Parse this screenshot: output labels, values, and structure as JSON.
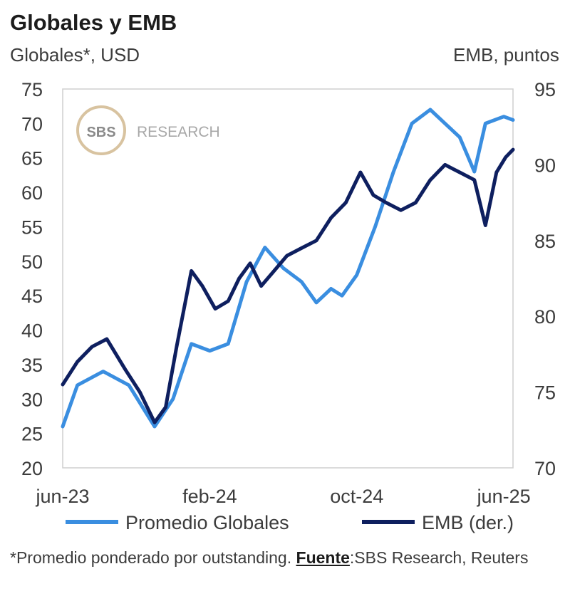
{
  "header": {
    "title": "Globales y EMB",
    "left_axis_caption": "Globales*, USD",
    "right_axis_caption": "EMB, puntos"
  },
  "watermark": {
    "badge": "SBS",
    "text": "RESEARCH"
  },
  "colors": {
    "globales": "#3a8ee0",
    "emb": "#0e1f5f",
    "frame": "#cfcfcf",
    "badge_ring": "#d8c3a0"
  },
  "chart_data": {
    "type": "line",
    "title": "Globales y EMB",
    "x_categories": [
      "jun-23",
      "feb-24",
      "oct-24",
      "jun-25"
    ],
    "x_tick_indices": [
      0,
      8,
      16,
      24
    ],
    "y_left": {
      "label": "Globales*, USD",
      "lim": [
        20,
        75
      ],
      "ticks": [
        75,
        70,
        65,
        60,
        55,
        50,
        45,
        40,
        35,
        30,
        25,
        20
      ]
    },
    "y_right": {
      "label": "EMB, puntos",
      "lim": [
        70,
        95
      ],
      "ticks": [
        95,
        90,
        85,
        80,
        75,
        70
      ]
    },
    "grid": false,
    "legend": "bottom",
    "series": [
      {
        "name": "Promedio Globales",
        "axis": "left",
        "x": [
          0,
          0.8,
          2.2,
          3.6,
          5.0,
          6.0,
          7.0,
          8.0,
          9.0,
          10.0,
          11.0,
          12.0,
          13.0,
          13.8,
          14.6,
          15.2,
          16.0,
          17.0,
          18.0,
          19.0,
          20.0,
          20.8,
          21.6,
          22.4,
          23.0,
          24.0,
          24.5
        ],
        "values": [
          26,
          32,
          34,
          32,
          26,
          30,
          38,
          37,
          38,
          47,
          52,
          49,
          47,
          44,
          46,
          45,
          48,
          55,
          63,
          70,
          72,
          70,
          68,
          63,
          70,
          71,
          70.5
        ]
      },
      {
        "name": "EMB (der.)",
        "axis": "right",
        "x": [
          0,
          0.8,
          1.6,
          2.4,
          3.4,
          4.2,
          5.0,
          5.6,
          6.2,
          7.0,
          7.6,
          8.3,
          9.0,
          9.6,
          10.2,
          10.8,
          11.5,
          12.2,
          13.0,
          13.8,
          14.6,
          15.4,
          16.2,
          16.9,
          17.6,
          18.4,
          19.2,
          20.0,
          20.8,
          21.6,
          22.4,
          23.0,
          23.6,
          24.1,
          24.5
        ],
        "values": [
          75.5,
          77,
          78,
          78.5,
          76.5,
          75,
          73,
          74,
          78,
          83,
          82,
          80.5,
          81,
          82.5,
          83.5,
          82,
          83,
          84,
          84.5,
          85,
          86.5,
          87.5,
          89.5,
          88,
          87.5,
          87,
          87.5,
          89,
          90,
          89.5,
          89,
          86,
          89.5,
          90.5,
          91
        ]
      }
    ]
  },
  "legend": {
    "globales_label": "Promedio Globales",
    "emb_label": "EMB (der.)"
  },
  "footnote": {
    "note": "*Promedio ponderado por outstanding. ",
    "source_label": "Fuente",
    "source_text": ":SBS Research, Reuters"
  }
}
